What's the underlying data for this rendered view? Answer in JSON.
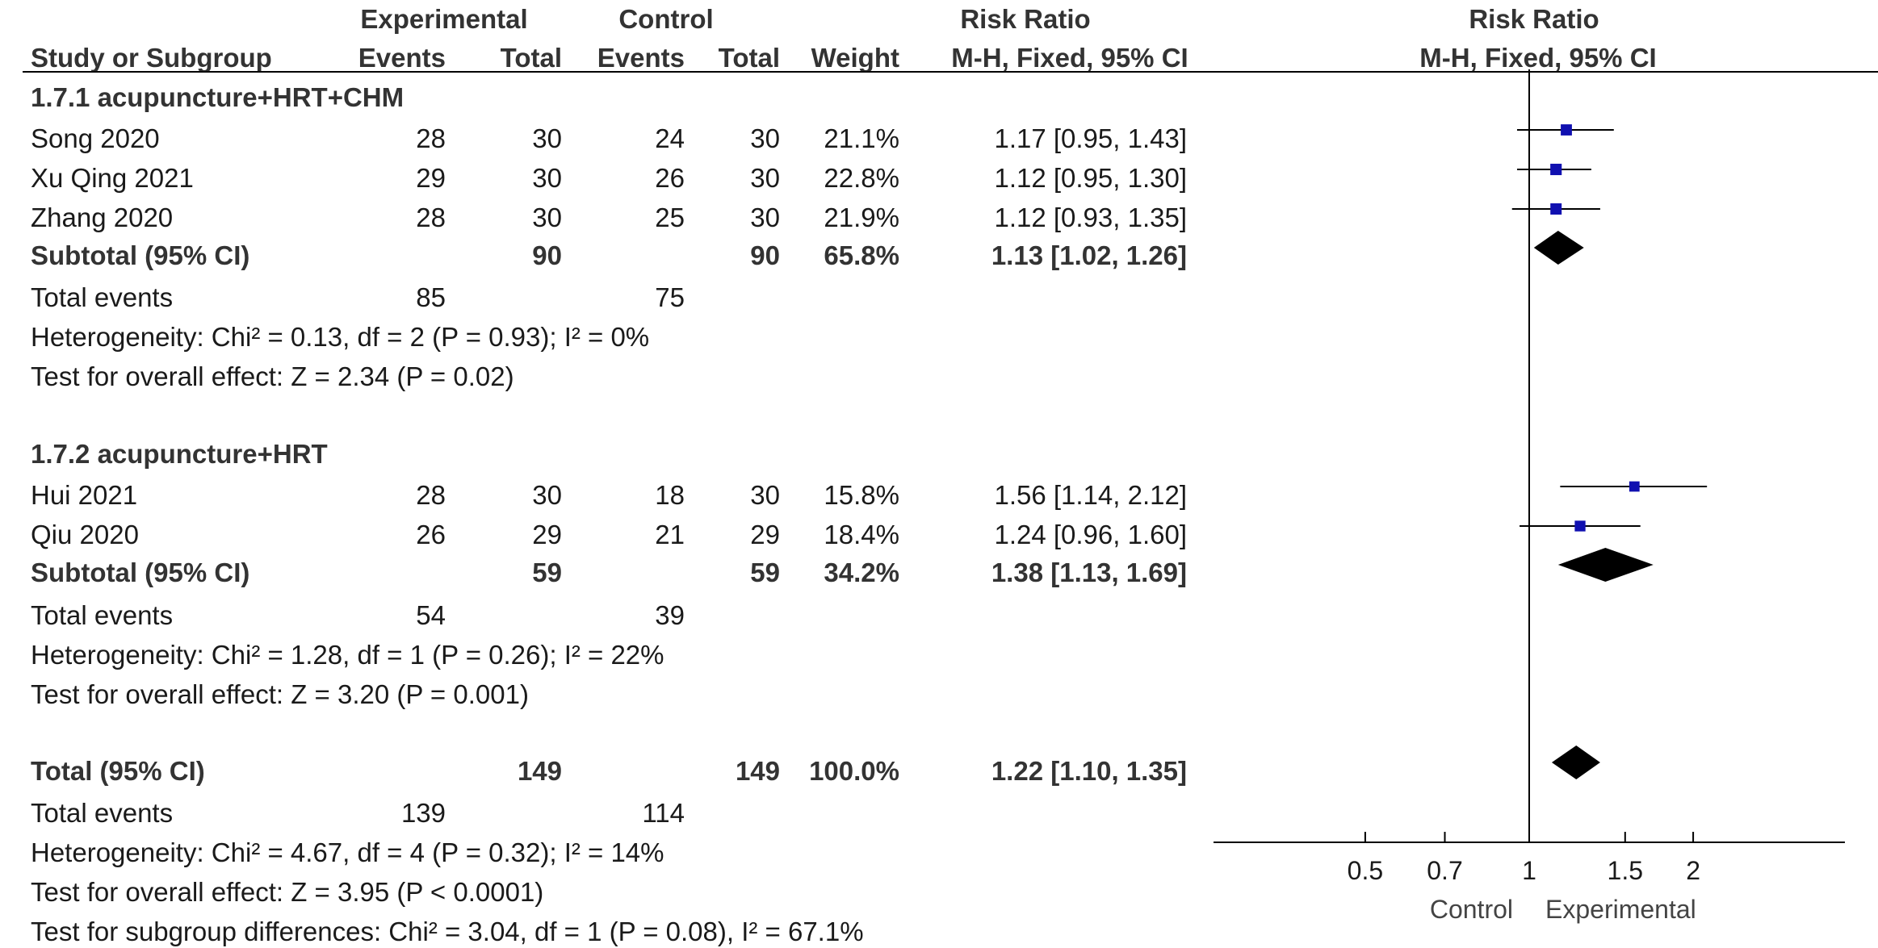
{
  "header": {
    "experimental": "Experimental",
    "control": "Control",
    "risk_ratio_stat": "Risk Ratio",
    "risk_ratio_plot": "Risk Ratio",
    "study": "Study or Subgroup",
    "exp_events": "Events",
    "exp_total": "Total",
    "ctl_events": "Events",
    "ctl_total": "Total",
    "weight": "Weight",
    "method_stat": "M-H, Fixed, 95% CI",
    "method_plot": "M-H, Fixed, 95% CI"
  },
  "groups": [
    {
      "title": "1.7.1 acupuncture+HRT+CHM",
      "studies": [
        {
          "name": "Song 2020",
          "exp_events": "28",
          "exp_total": "30",
          "ctl_events": "24",
          "ctl_total": "30",
          "weight": "21.1%",
          "ci": "1.17 [0.95, 1.43]"
        },
        {
          "name": "Xu Qing 2021",
          "exp_events": "29",
          "exp_total": "30",
          "ctl_events": "26",
          "ctl_total": "30",
          "weight": "22.8%",
          "ci": "1.12 [0.95, 1.30]"
        },
        {
          "name": "Zhang 2020",
          "exp_events": "28",
          "exp_total": "30",
          "ctl_events": "25",
          "ctl_total": "30",
          "weight": "21.9%",
          "ci": "1.12 [0.93, 1.35]"
        }
      ],
      "subtotal": {
        "label": "Subtotal (95% CI)",
        "exp_total": "90",
        "ctl_total": "90",
        "weight": "65.8%",
        "ci": "1.13 [1.02, 1.26]"
      },
      "total_events": {
        "label": "Total events",
        "exp": "85",
        "ctl": "75"
      },
      "heterogeneity": "Heterogeneity: Chi² = 0.13, df = 2 (P = 0.93); I² = 0%",
      "overall": "Test for overall effect: Z = 2.34 (P = 0.02)"
    },
    {
      "title": "1.7.2 acupuncture+HRT",
      "studies": [
        {
          "name": "Hui 2021",
          "exp_events": "28",
          "exp_total": "30",
          "ctl_events": "18",
          "ctl_total": "30",
          "weight": "15.8%",
          "ci": "1.56 [1.14, 2.12]"
        },
        {
          "name": "Qiu 2020",
          "exp_events": "26",
          "exp_total": "29",
          "ctl_events": "21",
          "ctl_total": "29",
          "weight": "18.4%",
          "ci": "1.24 [0.96, 1.60]"
        }
      ],
      "subtotal": {
        "label": "Subtotal (95% CI)",
        "exp_total": "59",
        "ctl_total": "59",
        "weight": "34.2%",
        "ci": "1.38 [1.13, 1.69]"
      },
      "total_events": {
        "label": "Total events",
        "exp": "54",
        "ctl": "39"
      },
      "heterogeneity": "Heterogeneity: Chi² = 1.28, df = 1 (P = 0.26); I² = 22%",
      "overall": "Test for overall effect: Z = 3.20 (P = 0.001)"
    }
  ],
  "total": {
    "label": "Total (95% CI)",
    "exp_total": "149",
    "ctl_total": "149",
    "weight": "100.0%",
    "ci": "1.22 [1.10, 1.35]",
    "total_events": {
      "label": "Total events",
      "exp": "139",
      "ctl": "114"
    },
    "heterogeneity": "Heterogeneity: Chi² = 4.67, df = 4 (P = 0.32); I² = 14%",
    "overall": "Test for overall effect: Z = 3.95 (P < 0.0001)",
    "subgroup_diff": "Test for subgroup differences: Chi² = 3.04, df = 1 (P = 0.08), I² = 67.1%"
  },
  "chart_data": {
    "type": "forest",
    "scale": "log",
    "null_value": 1,
    "xlim": [
      0.5,
      2
    ],
    "ticks": [
      0.5,
      0.7,
      1,
      1.5,
      2
    ],
    "tick_labels": [
      "0.5",
      "0.7",
      "1",
      "1.5",
      "2"
    ],
    "favours_left": "Control",
    "favours_right": "Experimental",
    "marker_color": "#1010b0",
    "diamond_color": "#000000",
    "studies": [
      {
        "name": "Song 2020",
        "rr": 1.17,
        "lo": 0.95,
        "hi": 1.43,
        "weight": 21.1
      },
      {
        "name": "Xu Qing 2021",
        "rr": 1.12,
        "lo": 0.95,
        "hi": 1.3,
        "weight": 22.8
      },
      {
        "name": "Zhang 2020",
        "rr": 1.12,
        "lo": 0.93,
        "hi": 1.35,
        "weight": 21.9
      },
      {
        "name": "Hui 2021",
        "rr": 1.56,
        "lo": 1.14,
        "hi": 2.12,
        "weight": 15.8
      },
      {
        "name": "Qiu 2020",
        "rr": 1.24,
        "lo": 0.96,
        "hi": 1.6,
        "weight": 18.4
      }
    ],
    "pooled": [
      {
        "name": "Subtotal 1.7.1",
        "rr": 1.13,
        "lo": 1.02,
        "hi": 1.26
      },
      {
        "name": "Subtotal 1.7.2",
        "rr": 1.38,
        "lo": 1.13,
        "hi": 1.69
      },
      {
        "name": "Total",
        "rr": 1.22,
        "lo": 1.1,
        "hi": 1.35
      }
    ]
  }
}
